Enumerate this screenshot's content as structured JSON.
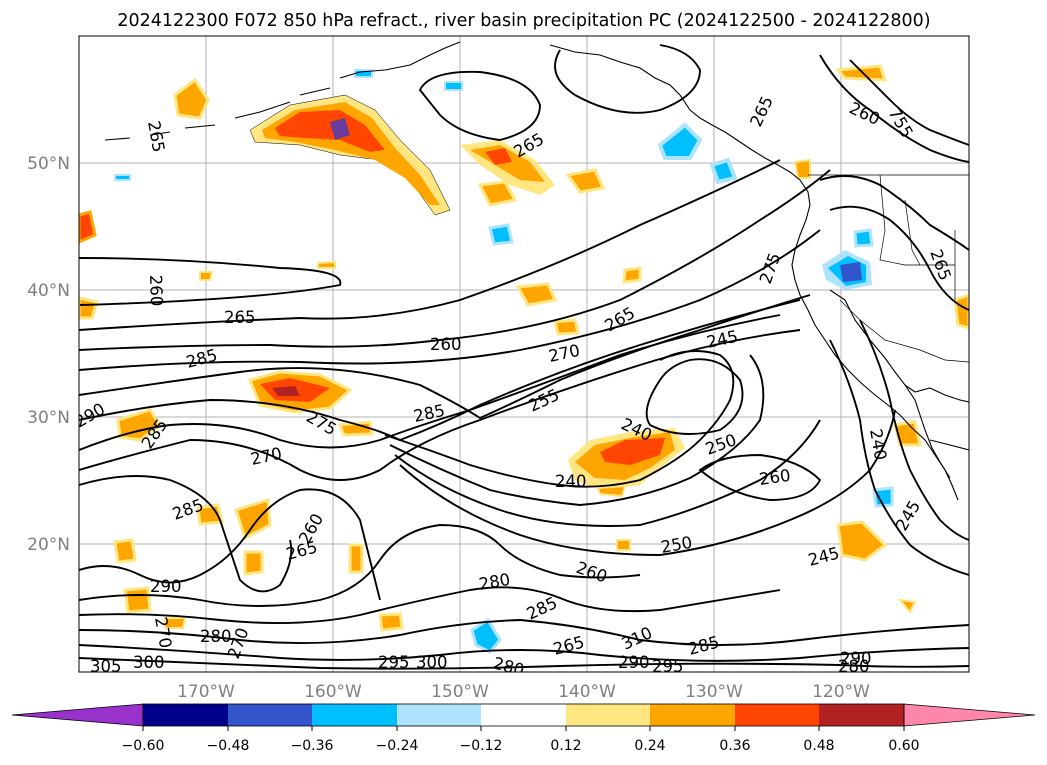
{
  "title": "2024122300 F072 850 hPa refract., river basin precipitation PC (2024122500 - 2024122800)",
  "map": {
    "lat_labels": [
      "50°N",
      "40°N",
      "30°N",
      "20°N"
    ],
    "lon_labels": [
      "170°W",
      "160°W",
      "150°W",
      "140°W",
      "130°W",
      "120°W"
    ],
    "lat_range": [
      10,
      60
    ],
    "lon_range": [
      -180,
      -110
    ],
    "gridlines": true,
    "contour_field": "850 hPa refractivity",
    "contour_labels": [
      {
        "text": "265"
      },
      {
        "text": "265"
      },
      {
        "text": "265"
      },
      {
        "text": "260"
      },
      {
        "text": "755"
      },
      {
        "text": "260"
      },
      {
        "text": "265"
      },
      {
        "text": "275"
      },
      {
        "text": "265"
      },
      {
        "text": "265"
      },
      {
        "text": "260"
      },
      {
        "text": "270"
      },
      {
        "text": "245"
      },
      {
        "text": "285"
      },
      {
        "text": "255"
      },
      {
        "text": "285"
      },
      {
        "text": "275"
      },
      {
        "text": "270"
      },
      {
        "text": "240"
      },
      {
        "text": "250"
      },
      {
        "text": "240"
      },
      {
        "text": "260"
      },
      {
        "text": "240"
      },
      {
        "text": "290"
      },
      {
        "text": "285"
      },
      {
        "text": "285"
      },
      {
        "text": "265"
      },
      {
        "text": "260"
      },
      {
        "text": "290"
      },
      {
        "text": "280"
      },
      {
        "text": "285"
      },
      {
        "text": "260"
      },
      {
        "text": "250"
      },
      {
        "text": "245"
      },
      {
        "text": "245"
      },
      {
        "text": "280"
      },
      {
        "text": "270"
      },
      {
        "text": "265"
      },
      {
        "text": "270"
      },
      {
        "text": "300"
      },
      {
        "text": "295"
      },
      {
        "text": "290"
      },
      {
        "text": "280"
      },
      {
        "text": "285"
      },
      {
        "text": "295"
      },
      {
        "text": "290"
      },
      {
        "text": "305"
      },
      {
        "text": "300"
      },
      {
        "text": "310"
      },
      {
        "text": "280"
      }
    ]
  },
  "colorbar": {
    "ticks": [
      "−0.60",
      "−0.48",
      "−0.36",
      "−0.24",
      "−0.12",
      "0.12",
      "0.24",
      "0.36",
      "0.48",
      "0.60"
    ],
    "colors": [
      "#9932cc",
      "#00008b",
      "#3355cc",
      "#00bfff",
      "#aee3ff",
      "#ffffff",
      "#ffe680",
      "#ffa500",
      "#ff4500",
      "#b22222",
      "#ff88aa"
    ]
  },
  "colors": {
    "shade_yellow": "#ffe680",
    "shade_orange": "#ffa500",
    "shade_red": "#ff4500",
    "shade_darkred": "#b22222",
    "shade_purple": "#6a3d9a",
    "shade_cyan": "#00bfff",
    "shade_lightblue": "#aee3ff",
    "shade_blue": "#3355cc"
  }
}
